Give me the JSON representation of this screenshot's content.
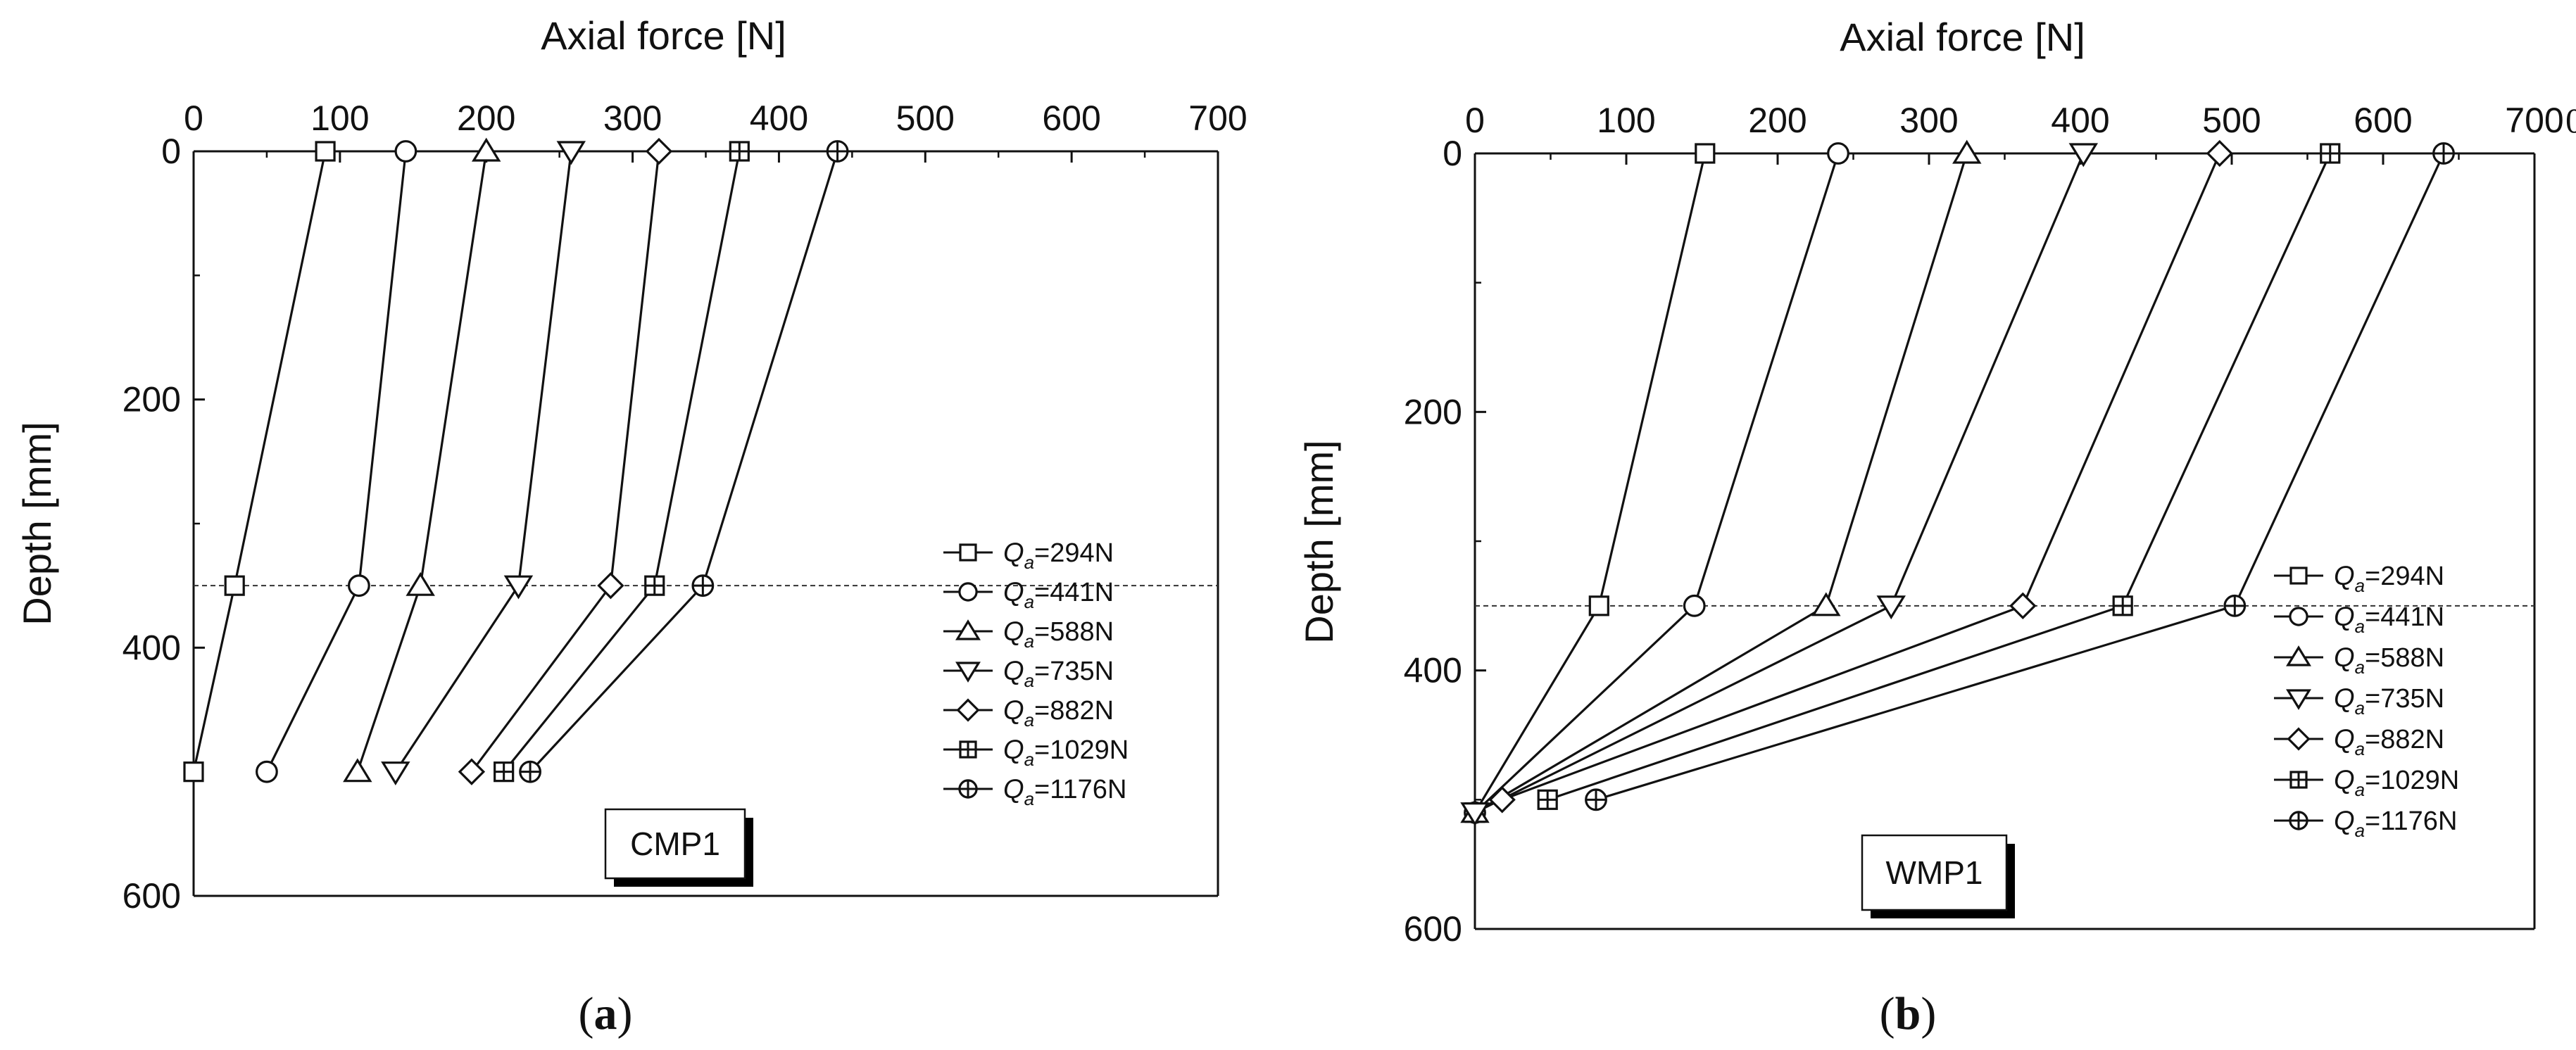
{
  "chart_data": [
    {
      "type": "line",
      "panel_label": {
        "open": "(",
        "letter": "a",
        "close": ")"
      },
      "box_label": "CMP1",
      "xlabel": "Axial force [N]",
      "ylabel": "Depth [mm]",
      "xlim": [
        0,
        700
      ],
      "ylim": [
        600,
        0
      ],
      "x_axis_position": "top",
      "x_ticks": [
        "0",
        "100",
        "200",
        "300",
        "400",
        "500",
        "600",
        "700"
      ],
      "y_ticks": [
        "0",
        "200",
        "400",
        "600"
      ],
      "reference_line_depth": 350,
      "legend_position": "right",
      "series": [
        {
          "name_base": "Q",
          "name_sub": "a",
          "name_rest": "=294N",
          "marker": "square",
          "points": [
            [
              90,
              0
            ],
            [
              28,
              350
            ],
            [
              0,
              500
            ]
          ]
        },
        {
          "name_base": "Q",
          "name_sub": "a",
          "name_rest": "=441N",
          "marker": "circle",
          "points": [
            [
              145,
              0
            ],
            [
              113,
              350
            ],
            [
              50,
              500
            ]
          ]
        },
        {
          "name_base": "Q",
          "name_sub": "a",
          "name_rest": "=588N",
          "marker": "triangle-up",
          "points": [
            [
              200,
              0
            ],
            [
              155,
              350
            ],
            [
              112,
              500
            ]
          ]
        },
        {
          "name_base": "Q",
          "name_sub": "a",
          "name_rest": "=735N",
          "marker": "triangle-down",
          "points": [
            [
              258,
              0
            ],
            [
              222,
              350
            ],
            [
              138,
              500
            ]
          ]
        },
        {
          "name_base": "Q",
          "name_sub": "a",
          "name_rest": "=882N",
          "marker": "diamond",
          "points": [
            [
              318,
              0
            ],
            [
              285,
              350
            ],
            [
              190,
              500
            ]
          ]
        },
        {
          "name_base": "Q",
          "name_sub": "a",
          "name_rest": "=1029N",
          "marker": "square-plus",
          "points": [
            [
              373,
              0
            ],
            [
              315,
              350
            ],
            [
              212,
              500
            ]
          ]
        },
        {
          "name_base": "Q",
          "name_sub": "a",
          "name_rest": "=1176N",
          "marker": "circle-plus",
          "points": [
            [
              440,
              0
            ],
            [
              348,
              350
            ],
            [
              230,
              500
            ]
          ]
        }
      ]
    },
    {
      "type": "line",
      "panel_label": {
        "open": "(",
        "letter": "b",
        "close": ")"
      },
      "box_label": "WMP1",
      "xlabel": "Axial force [N]",
      "ylabel": "Depth [mm]",
      "xlim": [
        0,
        700
      ],
      "ylim": [
        600,
        0
      ],
      "x_axis_position": "top",
      "x_ticks": [
        "0",
        "100",
        "200",
        "300",
        "400",
        "500",
        "600",
        "700"
      ],
      "last_tick_suffix": "0",
      "y_ticks": [
        "0",
        "200",
        "400",
        "600"
      ],
      "reference_line_depth": 350,
      "legend_position": "right",
      "series": [
        {
          "name_base": "Q",
          "name_sub": "a",
          "name_rest": "=294N",
          "marker": "square",
          "points": [
            [
              152,
              0
            ],
            [
              82,
              350
            ],
            [
              0,
              510
            ]
          ]
        },
        {
          "name_base": "Q",
          "name_sub": "a",
          "name_rest": "=441N",
          "marker": "circle",
          "points": [
            [
              240,
              0
            ],
            [
              145,
              350
            ],
            [
              0,
              510
            ]
          ]
        },
        {
          "name_base": "Q",
          "name_sub": "a",
          "name_rest": "=588N",
          "marker": "triangle-up",
          "points": [
            [
              325,
              0
            ],
            [
              232,
              350
            ],
            [
              0,
              510
            ]
          ]
        },
        {
          "name_base": "Q",
          "name_sub": "a",
          "name_rest": "=735N",
          "marker": "triangle-down",
          "points": [
            [
              402,
              0
            ],
            [
              275,
              350
            ],
            [
              0,
              510
            ]
          ]
        },
        {
          "name_base": "Q",
          "name_sub": "a",
          "name_rest": "=882N",
          "marker": "diamond",
          "points": [
            [
              492,
              0
            ],
            [
              362,
              350
            ],
            [
              18,
              500
            ]
          ]
        },
        {
          "name_base": "Q",
          "name_sub": "a",
          "name_rest": "=1029N",
          "marker": "square-plus",
          "points": [
            [
              565,
              0
            ],
            [
              428,
              350
            ],
            [
              48,
              500
            ]
          ]
        },
        {
          "name_base": "Q",
          "name_sub": "a",
          "name_rest": "=1176N",
          "marker": "circle-plus",
          "points": [
            [
              640,
              0
            ],
            [
              502,
              350
            ],
            [
              80,
              500
            ]
          ]
        }
      ]
    }
  ]
}
